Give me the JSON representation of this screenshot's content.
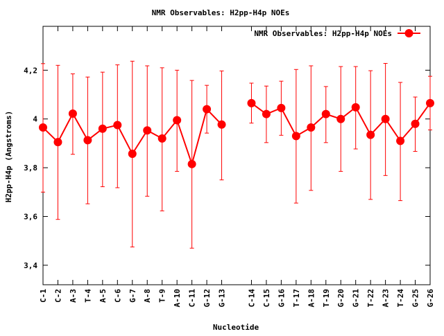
{
  "chart_data": {
    "type": "line",
    "title": "NMR Observables: H2pp-H4p NOEs",
    "xlabel": "Nucleotide",
    "ylabel": "H2pp-H4p (Angstroms)",
    "ylim": [
      3.32,
      4.38
    ],
    "yticks": [
      3.4,
      3.6,
      3.8,
      4,
      4.2
    ],
    "ytick_labels": [
      "3,4",
      "3,6",
      "3,8",
      "4",
      "4,2"
    ],
    "grid": false,
    "legend_position": "top-right",
    "series": [
      {
        "name": "NMR Observables: H2pp-H4p NOEs",
        "color": "#ff0000",
        "marker": "circle",
        "error_bars": true,
        "segments": [
          {
            "categories": [
              "C-1",
              "C-2",
              "A-3",
              "T-4",
              "A-5",
              "C-6",
              "G-7",
              "A-8",
              "T-9",
              "A-10",
              "C-11",
              "G-12",
              "G-13"
            ],
            "values": [
              3.965,
              3.905,
              4.022,
              3.913,
              3.96,
              3.975,
              3.857,
              3.953,
              3.92,
              3.995,
              3.815,
              4.04,
              3.977
            ],
            "err_low": [
              3.7,
              3.588,
              3.855,
              3.652,
              3.722,
              3.718,
              3.475,
              3.683,
              3.623,
              3.785,
              3.47,
              3.942,
              3.75
            ],
            "err_high": [
              4.227,
              4.22,
              4.185,
              4.172,
              4.192,
              4.222,
              4.237,
              4.218,
              4.21,
              4.2,
              4.158,
              4.138,
              4.197
            ]
          },
          {
            "categories": [
              "C-14",
              "C-15",
              "G-16",
              "T-17",
              "A-18",
              "T-19",
              "G-20",
              "G-21",
              "T-22",
              "A-23",
              "T-24",
              "G-25",
              "G-26"
            ],
            "values": [
              4.065,
              4.02,
              4.045,
              3.93,
              3.965,
              4.02,
              4.0,
              4.048,
              3.935,
              4.0,
              3.91,
              3.98,
              4.065
            ],
            "err_low": [
              3.983,
              3.903,
              3.933,
              3.655,
              3.707,
              3.903,
              3.785,
              3.877,
              3.67,
              3.768,
              3.665,
              3.867,
              3.955
            ],
            "err_high": [
              4.147,
              4.135,
              4.155,
              4.203,
              4.218,
              4.133,
              4.215,
              4.215,
              4.198,
              4.228,
              4.15,
              4.09,
              4.175
            ]
          }
        ]
      }
    ]
  }
}
